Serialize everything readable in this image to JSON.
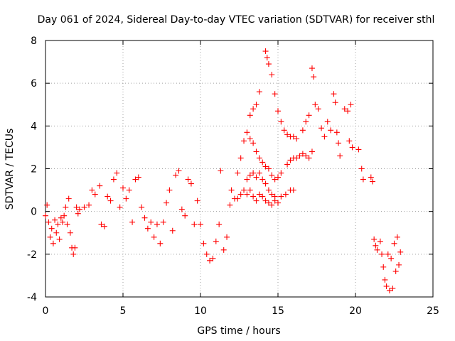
{
  "chart_data": {
    "type": "scatter",
    "title": "Day 061 of 2024, Sidereal Day-to-day VTEC variation (SDTVAR) for receiver sthl",
    "xlabel": "GPS time / hours",
    "ylabel": "SDTVAR / TECUs",
    "xlim": [
      0,
      25
    ],
    "ylim": [
      -4,
      8
    ],
    "xticks": [
      "0",
      "5",
      "10",
      "15",
      "20",
      "25"
    ],
    "yticks": [
      "-4",
      "-2",
      "0",
      "2",
      "4",
      "6",
      "8"
    ],
    "grid": true,
    "marker": "+",
    "color": "#ff0000",
    "series": [
      {
        "name": "SDTVAR",
        "points": [
          [
            0.0,
            -0.2
          ],
          [
            0.1,
            0.3
          ],
          [
            0.2,
            -0.5
          ],
          [
            0.3,
            -1.2
          ],
          [
            0.4,
            -0.8
          ],
          [
            0.5,
            -1.5
          ],
          [
            0.6,
            -0.4
          ],
          [
            0.7,
            -1.0
          ],
          [
            0.8,
            -0.6
          ],
          [
            0.9,
            -1.3
          ],
          [
            1.0,
            -0.3
          ],
          [
            1.1,
            -0.5
          ],
          [
            1.2,
            -0.2
          ],
          [
            1.3,
            0.2
          ],
          [
            1.4,
            -0.6
          ],
          [
            1.5,
            0.6
          ],
          [
            1.6,
            -1.0
          ],
          [
            1.7,
            -1.7
          ],
          [
            1.8,
            -2.0
          ],
          [
            1.9,
            -1.7
          ],
          [
            2.0,
            0.2
          ],
          [
            2.1,
            -0.1
          ],
          [
            2.2,
            0.1
          ],
          [
            2.5,
            0.2
          ],
          [
            2.8,
            0.3
          ],
          [
            3.0,
            1.0
          ],
          [
            3.2,
            0.8
          ],
          [
            3.5,
            1.2
          ],
          [
            3.6,
            -0.6
          ],
          [
            3.8,
            -0.7
          ],
          [
            4.0,
            0.7
          ],
          [
            4.2,
            0.5
          ],
          [
            4.4,
            1.5
          ],
          [
            4.6,
            1.8
          ],
          [
            4.8,
            0.2
          ],
          [
            5.0,
            1.1
          ],
          [
            5.2,
            0.6
          ],
          [
            5.4,
            1.0
          ],
          [
            5.6,
            -0.5
          ],
          [
            5.8,
            1.5
          ],
          [
            6.0,
            1.6
          ],
          [
            6.2,
            0.2
          ],
          [
            6.4,
            -0.3
          ],
          [
            6.6,
            -0.8
          ],
          [
            6.8,
            -0.5
          ],
          [
            7.0,
            -1.2
          ],
          [
            7.2,
            -0.6
          ],
          [
            7.4,
            -1.5
          ],
          [
            7.6,
            -0.5
          ],
          [
            7.8,
            0.4
          ],
          [
            8.0,
            1.0
          ],
          [
            8.2,
            -0.9
          ],
          [
            8.4,
            1.7
          ],
          [
            8.6,
            1.9
          ],
          [
            8.8,
            0.1
          ],
          [
            9.0,
            -0.2
          ],
          [
            9.2,
            1.5
          ],
          [
            9.4,
            1.3
          ],
          [
            9.6,
            -0.6
          ],
          [
            9.8,
            0.5
          ],
          [
            10.0,
            -0.6
          ],
          [
            10.2,
            -1.5
          ],
          [
            10.4,
            -2.0
          ],
          [
            10.6,
            -2.3
          ],
          [
            10.8,
            -2.2
          ],
          [
            11.0,
            -1.4
          ],
          [
            11.2,
            -0.6
          ],
          [
            11.3,
            1.9
          ],
          [
            11.5,
            -1.8
          ],
          [
            11.7,
            -1.2
          ],
          [
            11.9,
            0.3
          ],
          [
            12.0,
            1.0
          ],
          [
            12.2,
            0.6
          ],
          [
            12.4,
            1.8
          ],
          [
            12.6,
            2.5
          ],
          [
            12.8,
            3.3
          ],
          [
            13.0,
            3.7
          ],
          [
            13.2,
            4.5
          ],
          [
            13.4,
            4.8
          ],
          [
            13.6,
            5.0
          ],
          [
            13.8,
            5.6
          ],
          [
            12.4,
            0.6
          ],
          [
            12.6,
            0.8
          ],
          [
            12.8,
            1.0
          ],
          [
            13.0,
            0.8
          ],
          [
            13.2,
            1.0
          ],
          [
            13.4,
            0.7
          ],
          [
            13.6,
            0.5
          ],
          [
            13.8,
            0.8
          ],
          [
            14.0,
            0.7
          ],
          [
            14.2,
            0.5
          ],
          [
            14.4,
            0.4
          ],
          [
            14.6,
            0.3
          ],
          [
            14.8,
            0.5
          ],
          [
            15.0,
            0.4
          ],
          [
            15.2,
            0.7
          ],
          [
            13.0,
            1.5
          ],
          [
            13.2,
            1.7
          ],
          [
            13.4,
            1.8
          ],
          [
            13.6,
            1.6
          ],
          [
            13.8,
            1.8
          ],
          [
            14.0,
            1.5
          ],
          [
            14.2,
            1.3
          ],
          [
            14.4,
            1.0
          ],
          [
            14.6,
            0.8
          ],
          [
            14.8,
            0.7
          ],
          [
            13.2,
            3.4
          ],
          [
            13.4,
            3.2
          ],
          [
            13.6,
            2.8
          ],
          [
            13.8,
            2.5
          ],
          [
            14.0,
            2.3
          ],
          [
            14.2,
            2.1
          ],
          [
            14.4,
            2.0
          ],
          [
            14.6,
            1.7
          ],
          [
            14.8,
            1.5
          ],
          [
            15.0,
            1.6
          ],
          [
            15.2,
            1.8
          ],
          [
            14.2,
            7.5
          ],
          [
            14.3,
            7.2
          ],
          [
            14.4,
            6.9
          ],
          [
            14.6,
            6.4
          ],
          [
            14.8,
            5.5
          ],
          [
            15.0,
            4.7
          ],
          [
            15.2,
            4.2
          ],
          [
            15.4,
            3.8
          ],
          [
            15.6,
            3.6
          ],
          [
            15.8,
            3.5
          ],
          [
            16.0,
            3.5
          ],
          [
            16.2,
            3.4
          ],
          [
            15.5,
            0.8
          ],
          [
            15.8,
            1.0
          ],
          [
            16.0,
            1.0
          ],
          [
            15.6,
            2.2
          ],
          [
            15.8,
            2.4
          ],
          [
            16.0,
            2.5
          ],
          [
            16.2,
            2.5
          ],
          [
            16.4,
            2.6
          ],
          [
            16.6,
            2.7
          ],
          [
            16.8,
            2.6
          ],
          [
            17.0,
            2.5
          ],
          [
            17.2,
            2.8
          ],
          [
            16.6,
            3.8
          ],
          [
            16.8,
            4.2
          ],
          [
            17.0,
            4.5
          ],
          [
            17.2,
            6.7
          ],
          [
            17.3,
            6.3
          ],
          [
            17.4,
            5.0
          ],
          [
            17.6,
            4.8
          ],
          [
            17.8,
            3.9
          ],
          [
            18.0,
            3.5
          ],
          [
            18.2,
            4.2
          ],
          [
            18.4,
            3.8
          ],
          [
            18.6,
            5.5
          ],
          [
            18.7,
            5.1
          ],
          [
            18.8,
            3.7
          ],
          [
            18.9,
            3.2
          ],
          [
            19.0,
            2.6
          ],
          [
            19.3,
            4.8
          ],
          [
            19.5,
            4.7
          ],
          [
            19.7,
            5.0
          ],
          [
            19.6,
            3.3
          ],
          [
            19.8,
            3.0
          ],
          [
            20.2,
            2.9
          ],
          [
            20.4,
            2.0
          ],
          [
            20.5,
            1.5
          ],
          [
            21.0,
            1.6
          ],
          [
            21.1,
            1.4
          ],
          [
            21.2,
            -1.3
          ],
          [
            21.3,
            -1.6
          ],
          [
            21.4,
            -1.8
          ],
          [
            21.6,
            -1.4
          ],
          [
            21.7,
            -2.0
          ],
          [
            21.8,
            -2.6
          ],
          [
            21.9,
            -3.2
          ],
          [
            22.0,
            -3.5
          ],
          [
            22.1,
            -2.0
          ],
          [
            22.2,
            -3.7
          ],
          [
            22.3,
            -2.2
          ],
          [
            22.4,
            -3.6
          ],
          [
            22.5,
            -1.5
          ],
          [
            22.6,
            -2.8
          ],
          [
            22.7,
            -1.2
          ],
          [
            22.8,
            -2.5
          ],
          [
            22.9,
            -1.9
          ]
        ]
      }
    ]
  }
}
